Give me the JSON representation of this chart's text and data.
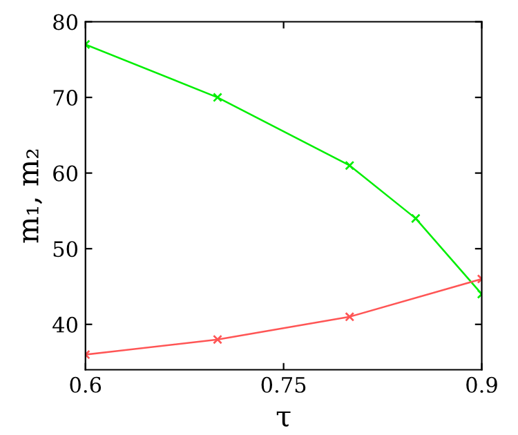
{
  "chart_data": {
    "type": "line",
    "xlabel": "τ",
    "ylabel": "m₁, m₂",
    "xlim": [
      0.6,
      0.9
    ],
    "xticks": [
      0.6,
      0.75,
      0.9
    ],
    "ylim": [
      34,
      80
    ],
    "yticks": [
      40,
      50,
      60,
      70,
      80
    ],
    "grid": false,
    "legend": false,
    "marker": "cross",
    "series": [
      {
        "color": "#00ee00",
        "x": [
          0.6,
          0.7,
          0.8,
          0.85,
          0.9
        ],
        "values": [
          77,
          70,
          61,
          54,
          44
        ]
      },
      {
        "color": "#ff5555",
        "x": [
          0.6,
          0.7,
          0.8,
          0.9
        ],
        "values": [
          36,
          38,
          41,
          46
        ]
      }
    ]
  }
}
